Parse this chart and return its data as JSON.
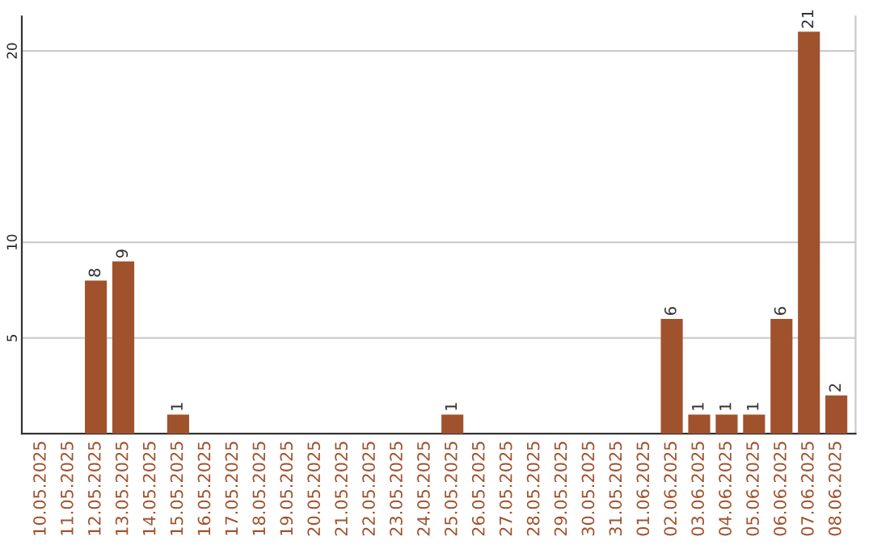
{
  "chart_data": {
    "type": "bar",
    "categories": [
      "10.05.2025",
      "11.05.2025",
      "12.05.2025",
      "13.05.2025",
      "14.05.2025",
      "15.05.2025",
      "16.05.2025",
      "17.05.2025",
      "18.05.2025",
      "19.05.2025",
      "20.05.2025",
      "21.05.2025",
      "22.05.2025",
      "23.05.2025",
      "24.05.2025",
      "25.05.2025",
      "26.05.2025",
      "27.05.2025",
      "28.05.2025",
      "29.05.2025",
      "30.05.2025",
      "31.05.2025",
      "01.06.2025",
      "02.06.2025",
      "03.06.2025",
      "04.06.2025",
      "05.06.2025",
      "06.06.2025",
      "07.06.2025",
      "08.06.2025"
    ],
    "values": [
      0,
      0,
      8,
      9,
      0,
      1,
      0,
      0,
      0,
      0,
      0,
      0,
      0,
      0,
      0,
      1,
      0,
      0,
      0,
      0,
      0,
      0,
      0,
      6,
      1,
      1,
      1,
      6,
      21,
      2
    ],
    "value_labels": [
      null,
      null,
      "8",
      "9",
      null,
      "1",
      null,
      null,
      null,
      null,
      null,
      null,
      null,
      null,
      null,
      "1",
      null,
      null,
      null,
      null,
      null,
      null,
      null,
      "6",
      "1",
      "1",
      "1",
      "6",
      "21",
      "2"
    ],
    "color": "#a0522d",
    "ylim": [
      0,
      21.8
    ],
    "yticks": [
      5,
      10,
      20
    ],
    "grid": "y"
  }
}
